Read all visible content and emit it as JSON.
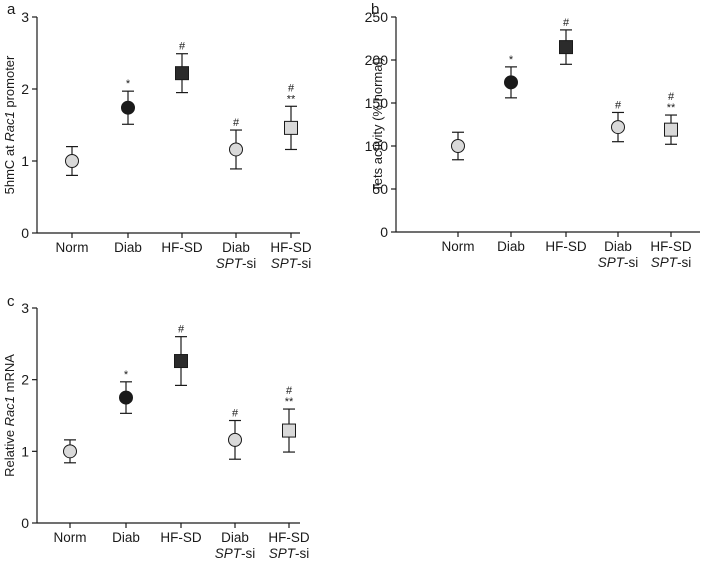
{
  "chart_data": [
    {
      "type": "scatter",
      "panel_label": "a",
      "ylabel_prefix": "5hmC at ",
      "ylabel_italic": "Rac1",
      "ylabel_suffix": " promoter",
      "ylim": [
        0,
        3
      ],
      "yticks": [
        "0",
        "1",
        "2",
        "3"
      ],
      "ytick_values": [
        0,
        1,
        2,
        3
      ],
      "categories": [
        {
          "line1": "Norm",
          "line2_italic": "",
          "line2_rest": ""
        },
        {
          "line1": "Diab",
          "line2_italic": "",
          "line2_rest": ""
        },
        {
          "line1": "HF-SD",
          "line2_italic": "",
          "line2_rest": ""
        },
        {
          "line1": "Diab",
          "line2_italic": "SPT",
          "line2_rest": "-si"
        },
        {
          "line1": "HF-SD",
          "line2_italic": "SPT",
          "line2_rest": "-si"
        }
      ],
      "points": [
        {
          "value": 1.0,
          "err": 0.2,
          "marker": "circle",
          "fill": "#d9d9d9",
          "sig": []
        },
        {
          "value": 1.74,
          "err": 0.23,
          "marker": "circle",
          "fill": "#1a1a1a",
          "sig": [
            "*"
          ]
        },
        {
          "value": 2.22,
          "err": 0.27,
          "marker": "square",
          "fill": "#2b2b2b",
          "sig": [
            "#"
          ]
        },
        {
          "value": 1.16,
          "err": 0.27,
          "marker": "circle",
          "fill": "#d9d9d9",
          "sig": [
            "#"
          ]
        },
        {
          "value": 1.46,
          "err": 0.3,
          "marker": "square",
          "fill": "#d9d9d9",
          "sig": [
            "#",
            "**"
          ]
        }
      ]
    },
    {
      "type": "scatter",
      "panel_label": "b",
      "ylabel_prefix": "Tets activity (% normal)",
      "ylabel_italic": "",
      "ylabel_suffix": "",
      "ylim": [
        0,
        250
      ],
      "yticks": [
        "0",
        "50",
        "100",
        "150",
        "200",
        "250"
      ],
      "ytick_values": [
        0,
        50,
        100,
        150,
        200,
        250
      ],
      "categories": [
        {
          "line1": "Norm",
          "line2_italic": "",
          "line2_rest": ""
        },
        {
          "line1": "Diab",
          "line2_italic": "",
          "line2_rest": ""
        },
        {
          "line1": "HF-SD",
          "line2_italic": "",
          "line2_rest": ""
        },
        {
          "line1": "Diab",
          "line2_italic": "SPT",
          "line2_rest": "-si"
        },
        {
          "line1": "HF-SD",
          "line2_italic": "SPT",
          "line2_rest": "-si"
        }
      ],
      "points": [
        {
          "value": 100,
          "err": 16,
          "marker": "circle",
          "fill": "#d9d9d9",
          "sig": []
        },
        {
          "value": 174,
          "err": 18,
          "marker": "circle",
          "fill": "#1a1a1a",
          "sig": [
            "*"
          ]
        },
        {
          "value": 215,
          "err": 20,
          "marker": "square",
          "fill": "#2b2b2b",
          "sig": [
            "#"
          ]
        },
        {
          "value": 122,
          "err": 17,
          "marker": "circle",
          "fill": "#d9d9d9",
          "sig": [
            "#"
          ]
        },
        {
          "value": 119,
          "err": 17,
          "marker": "square",
          "fill": "#d9d9d9",
          "sig": [
            "#",
            "**"
          ]
        }
      ]
    },
    {
      "type": "scatter",
      "panel_label": "c",
      "ylabel_prefix": "Relative ",
      "ylabel_italic": "Rac1",
      "ylabel_suffix": " mRNA",
      "ylim": [
        0,
        3
      ],
      "yticks": [
        "0",
        "1",
        "2",
        "3"
      ],
      "ytick_values": [
        0,
        1,
        2,
        3
      ],
      "categories": [
        {
          "line1": "Norm",
          "line2_italic": "",
          "line2_rest": ""
        },
        {
          "line1": "Diab",
          "line2_italic": "",
          "line2_rest": ""
        },
        {
          "line1": "HF-SD",
          "line2_italic": "",
          "line2_rest": ""
        },
        {
          "line1": "Diab",
          "line2_italic": "SPT",
          "line2_rest": "-si"
        },
        {
          "line1": "HF-SD",
          "line2_italic": "SPT",
          "line2_rest": "-si"
        }
      ],
      "points": [
        {
          "value": 1.0,
          "err": 0.16,
          "marker": "circle",
          "fill": "#d9d9d9",
          "sig": []
        },
        {
          "value": 1.75,
          "err": 0.22,
          "marker": "circle",
          "fill": "#1a1a1a",
          "sig": [
            "*"
          ]
        },
        {
          "value": 2.26,
          "err": 0.34,
          "marker": "square",
          "fill": "#2b2b2b",
          "sig": [
            "#"
          ]
        },
        {
          "value": 1.16,
          "err": 0.27,
          "marker": "circle",
          "fill": "#d9d9d9",
          "sig": [
            "#"
          ]
        },
        {
          "value": 1.29,
          "err": 0.3,
          "marker": "square",
          "fill": "#d9d9d9",
          "sig": [
            "#",
            "**"
          ]
        }
      ]
    }
  ]
}
